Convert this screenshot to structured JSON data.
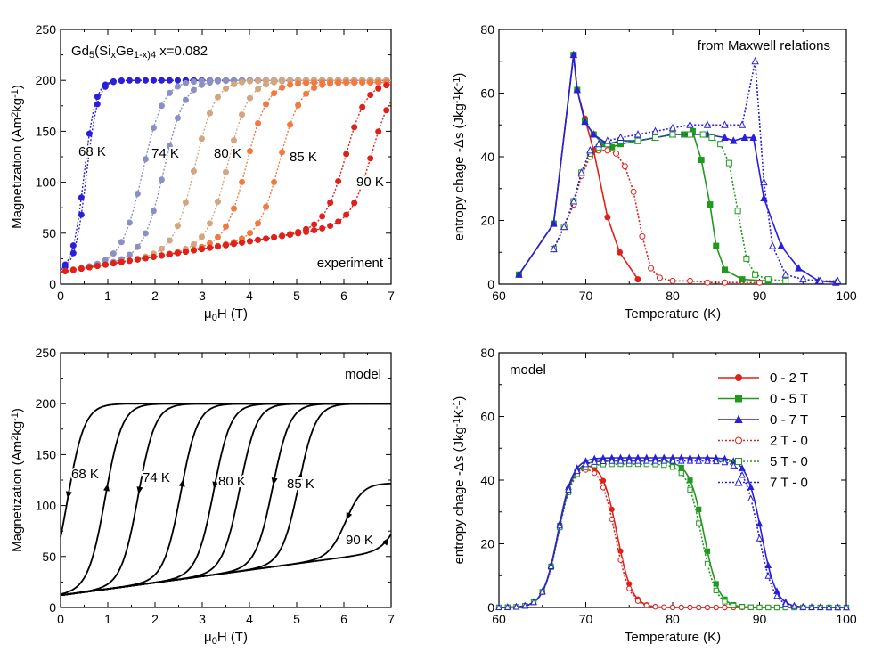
{
  "chart_data": [
    {
      "id": "tl",
      "type": "scatter",
      "title": "",
      "xlabel": "μ0H (T)",
      "ylabel": "Magnetization (Am2kg-1)",
      "xlim": [
        0,
        7
      ],
      "ylim": [
        0,
        250
      ],
      "xticks": [
        0,
        1,
        2,
        3,
        4,
        5,
        6,
        7
      ],
      "yticks": [
        0,
        50,
        100,
        150,
        200,
        250
      ],
      "annotations": {
        "formula": "Gd5(SixGe1-x)4  x=0.082",
        "panel_label": "experiment",
        "temps": [
          "68 K",
          "74 K",
          "80 K",
          "85 K",
          "90 K"
        ]
      },
      "series": [
        {
          "name": "68 K",
          "color": "#2a1fd9",
          "Hc_up": 0.55,
          "Hc_down": 0.5,
          "sat": 200
        },
        {
          "name": "74 K",
          "color": "#8a8fc4",
          "Hc_up": 2.2,
          "Hc_down": 1.75,
          "sat": 200
        },
        {
          "name": "80 K",
          "color": "#d2a67e",
          "Hc_up": 3.55,
          "Hc_down": 2.85,
          "sat": 200
        },
        {
          "name": "85 K",
          "color": "#f07a40",
          "Hc_up": 4.65,
          "Hc_down": 3.95,
          "sat": 198
        },
        {
          "name": "90 K",
          "color": "#e0201a",
          "Hc_up": 6.6,
          "Hc_down": 6.05,
          "sat": 198
        }
      ]
    },
    {
      "id": "tr",
      "type": "line",
      "xlabel": "Temperature (K)",
      "ylabel": "entropy chage -Δs (Jkg-1K-1)",
      "xlim": [
        60,
        100
      ],
      "ylim": [
        0,
        80
      ],
      "xticks": [
        60,
        70,
        80,
        90,
        100
      ],
      "yticks": [
        0,
        20,
        40,
        60,
        80
      ],
      "annotations": {
        "panel_label": "from Maxwell relations"
      },
      "series": [
        {
          "name": "0 - 2 T",
          "color": "#e0201a",
          "dash": false,
          "marker": "circle",
          "filled": true,
          "x": [
            62.3,
            66.3,
            68.6,
            69.0,
            69.9,
            70.9,
            72.5,
            73.9,
            76.0
          ],
          "y": [
            3,
            19,
            72,
            61,
            52,
            42,
            21,
            10,
            1.5
          ]
        },
        {
          "name": "0 - 5 T",
          "color": "#1f9a1f",
          "dash": false,
          "marker": "square",
          "filled": true,
          "x": [
            62.3,
            66.3,
            68.6,
            69.0,
            69.9,
            70.9,
            72.0,
            73.0,
            74.0,
            76.0,
            78.0,
            80.0,
            81.3,
            82.3,
            83.3,
            84.3,
            85.0,
            86.0,
            88.0,
            91.0
          ],
          "y": [
            3,
            19,
            72,
            61,
            51,
            47,
            44,
            43,
            44,
            45,
            46,
            47,
            47,
            48,
            39,
            25,
            12,
            4.5,
            1.5,
            1
          ]
        },
        {
          "name": "0 - 7 T",
          "color": "#2a1fd9",
          "dash": false,
          "marker": "triangle",
          "filled": true,
          "x": [
            62.3,
            66.3,
            68.6,
            69.0,
            69.9,
            70.9,
            72.5,
            74,
            76,
            78,
            80,
            82,
            84,
            86,
            87,
            88.3,
            89.3,
            90.5,
            92.5,
            94.5,
            96.8,
            98.8
          ],
          "y": [
            3,
            19,
            72,
            61,
            51,
            47,
            44,
            45,
            45,
            46,
            47,
            47,
            47,
            46,
            45,
            46,
            46,
            27,
            12,
            5,
            1,
            0.5
          ]
        },
        {
          "name": "2 T - 0",
          "color": "#e0201a",
          "dash": true,
          "marker": "circle",
          "filled": false,
          "x": [
            66.3,
            67.5,
            68.6,
            69.5,
            70.5,
            71.5,
            72.5,
            73.5,
            74.5,
            75.5,
            76.5,
            77.5,
            78.5,
            80,
            82,
            84,
            86,
            90
          ],
          "y": [
            11,
            18,
            25,
            34,
            40,
            42,
            42,
            41,
            37,
            29,
            15,
            5,
            2,
            1,
            1,
            0.5,
            0.5,
            0.5
          ]
        },
        {
          "name": "5 T - 0",
          "color": "#1f9a1f",
          "dash": true,
          "marker": "square",
          "filled": false,
          "x": [
            66.3,
            67.5,
            68.6,
            69.5,
            70.5,
            71.5,
            72.5,
            74,
            76,
            78,
            80,
            82,
            83.5,
            84.5,
            85.5,
            86.5,
            87.5,
            88.5,
            89.5,
            91,
            93
          ],
          "y": [
            11,
            18,
            26,
            35,
            41,
            43,
            44,
            45,
            45,
            46,
            47,
            47,
            47,
            46,
            44,
            38,
            23,
            8,
            3,
            1.5,
            1
          ]
        },
        {
          "name": "7 T - 0",
          "color": "#2a1fd9",
          "dash": true,
          "marker": "triangle",
          "filled": false,
          "x": [
            66.3,
            67.5,
            68.6,
            69.5,
            70.5,
            71.5,
            72.5,
            74,
            76,
            78,
            80,
            82,
            84,
            86,
            88,
            89.5,
            90.5,
            91.5,
            93,
            95,
            97,
            99
          ],
          "y": [
            11,
            18,
            26,
            35,
            42,
            44,
            45,
            46,
            47,
            48,
            49,
            50,
            50,
            50,
            50,
            70,
            32,
            12,
            3,
            1.5,
            1,
            1
          ]
        }
      ]
    },
    {
      "id": "bl",
      "type": "line",
      "xlabel": "μ0H (T)",
      "ylabel": "Magnetization (Am2kg-1)",
      "xlim": [
        0,
        7
      ],
      "ylim": [
        0,
        250
      ],
      "xticks": [
        0,
        1,
        2,
        3,
        4,
        5,
        6,
        7
      ],
      "yticks": [
        0,
        50,
        100,
        150,
        200,
        250
      ],
      "annotations": {
        "panel_label": "model"
      },
      "series": [
        {
          "name": "68 K",
          "color": "#2a1fd9",
          "Hc_up": 0.95,
          "Hc_down": 0.15
        },
        {
          "name": "74 K",
          "color": "#8a8fc4",
          "Hc_up": 2.55,
          "Hc_down": 1.65
        },
        {
          "name": "80 K",
          "color": "#c9b83a",
          "Hc_up": 3.8,
          "Hc_down": 3.25
        },
        {
          "name": "85 K",
          "color": "#f0a060",
          "Hc_up": 5.05,
          "Hc_down": 4.5
        },
        {
          "name": "90 K",
          "color": "#e0201a",
          "Hc_up": 7.2,
          "Hc_down": 6.05
        }
      ]
    },
    {
      "id": "br",
      "type": "line",
      "xlabel": "Temperature (K)",
      "ylabel": "entropy chage -Δs (Jkg-1K-1)",
      "xlim": [
        60,
        100
      ],
      "ylim": [
        0,
        80
      ],
      "xticks": [
        60,
        70,
        80,
        90,
        100
      ],
      "yticks": [
        0,
        20,
        40,
        60,
        80
      ],
      "annotations": {
        "panel_label": "model"
      },
      "legend": [
        "0 - 2 T",
        "0 - 5 T",
        "0 - 7 T",
        "2 T - 0",
        "5 T - 0",
        "7 T - 0"
      ],
      "series": [
        {
          "name": "0 - 2 T",
          "color": "#e0201a",
          "dash": false,
          "marker": "circle",
          "filled": true,
          "T1": 66.8,
          "T2": 73.6,
          "plateau": 46
        },
        {
          "name": "0 - 5 T",
          "color": "#1f9a1f",
          "dash": false,
          "marker": "square",
          "filled": true,
          "T1": 66.8,
          "T2": 83.6,
          "plateau": 46
        },
        {
          "name": "0 - 7 T",
          "color": "#2a1fd9",
          "dash": false,
          "marker": "triangle",
          "filled": true,
          "T1": 66.8,
          "T2": 90.2,
          "plateau": 47
        },
        {
          "name": "2 T - 0",
          "color": "#e0201a",
          "dash": true,
          "marker": "circle",
          "filled": false,
          "T1": 66.8,
          "T2": 73.4,
          "plateau": 45
        },
        {
          "name": "5 T - 0",
          "color": "#1f9a1f",
          "dash": true,
          "marker": "square",
          "filled": false,
          "T1": 66.8,
          "T2": 83.3,
          "plateau": 45
        },
        {
          "name": "7 T - 0",
          "color": "#2a1fd9",
          "dash": true,
          "marker": "triangle",
          "filled": false,
          "T1": 66.8,
          "T2": 89.9,
          "plateau": 46
        }
      ]
    }
  ]
}
